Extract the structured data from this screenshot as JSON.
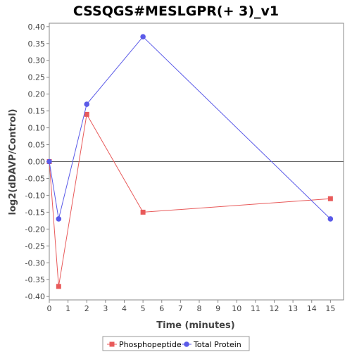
{
  "chart_data": {
    "type": "line",
    "title": "CSSQGS#MESLGPR(+ 3)_v1",
    "xlabel": "Time (minutes)",
    "ylabel": "log2(dDAVP/Control)",
    "xlim": [
      0,
      15.7
    ],
    "ylim": [
      -0.41,
      0.41
    ],
    "x_ticks": [
      0,
      1,
      2,
      3,
      4,
      5,
      6,
      7,
      8,
      9,
      10,
      11,
      12,
      13,
      14,
      15
    ],
    "y_ticks": [
      -0.4,
      -0.35,
      -0.3,
      -0.25,
      -0.2,
      -0.15,
      -0.1,
      -0.05,
      0.0,
      0.05,
      0.1,
      0.15,
      0.2,
      0.25,
      0.3,
      0.35,
      0.4
    ],
    "grid": false,
    "legend_position": "bottom",
    "series": [
      {
        "name": "Phosphopeptide",
        "color": "#e85a5a",
        "marker": "square",
        "x": [
          0,
          0.5,
          2,
          5,
          15
        ],
        "y": [
          0.0,
          -0.37,
          0.14,
          -0.15,
          -0.11
        ]
      },
      {
        "name": "Total Protein",
        "color": "#5a5ae8",
        "marker": "circle",
        "x": [
          0,
          0.5,
          2,
          5,
          15
        ],
        "y": [
          0.0,
          -0.17,
          0.17,
          0.37,
          -0.17
        ]
      }
    ]
  }
}
